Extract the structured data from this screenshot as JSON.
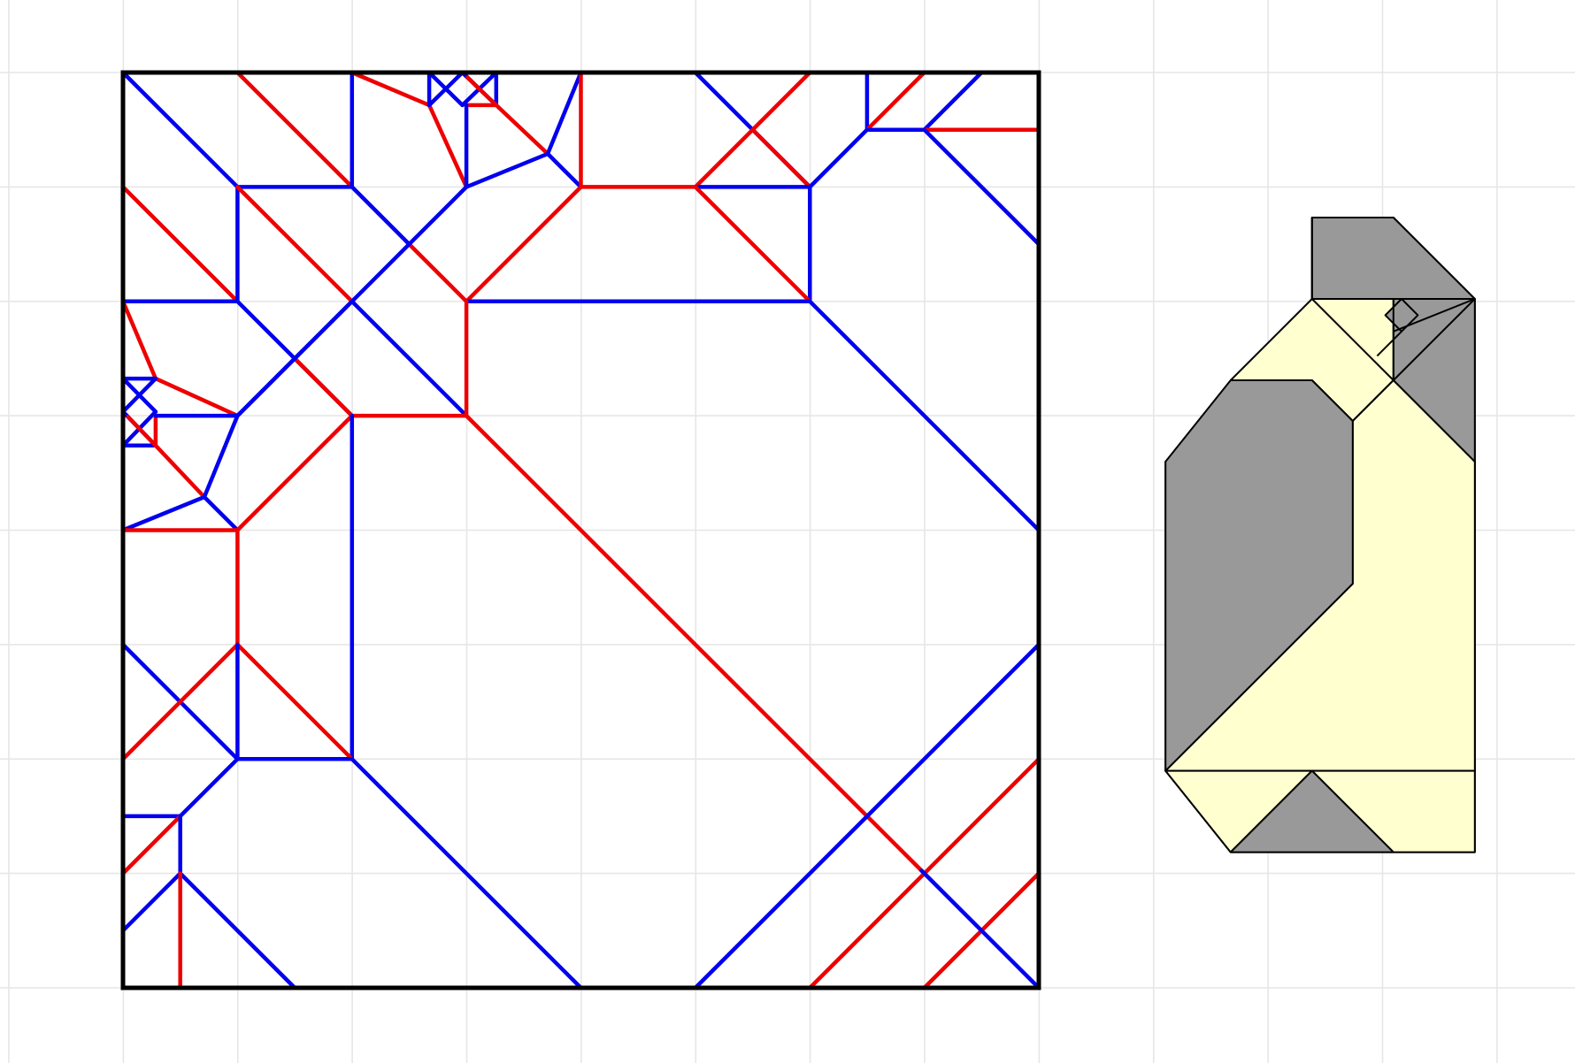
{
  "colors": {
    "background": "#ffffff",
    "grid": "#e6e6e6",
    "border": "#000000",
    "mountain": "#ee0000",
    "valley": "#0000ee",
    "paper_front": "#ffffd0",
    "paper_back": "#999999",
    "edge": "#000000"
  },
  "crease_pattern": {
    "creases": [
      {
        "t": "v",
        "p": [
          0,
          0,
          4,
          4
        ]
      },
      {
        "t": "m",
        "p": [
          4,
          0,
          8,
          4
        ]
      },
      {
        "t": "v",
        "p": [
          8,
          0,
          8,
          4
        ]
      },
      {
        "t": "m",
        "p": [
          8,
          0,
          10.7,
          1.14
        ]
      },
      {
        "t": "m",
        "p": [
          10.7,
          1.14,
          12,
          4
        ]
      },
      {
        "t": "v",
        "p": [
          10.7,
          0,
          10.7,
          1.14
        ]
      },
      {
        "t": "v",
        "p": [
          10.7,
          0,
          11.86,
          1.14
        ]
      },
      {
        "t": "v",
        "p": [
          11.86,
          0,
          12.04,
          0.18
        ]
      },
      {
        "t": "v",
        "p": [
          11.86,
          0,
          10.7,
          1.14
        ]
      },
      {
        "t": "v",
        "p": [
          11.86,
          0,
          13.04,
          1.14
        ]
      },
      {
        "t": "v",
        "p": [
          13.04,
          0,
          13.04,
          1.14
        ]
      },
      {
        "t": "v",
        "p": [
          13.04,
          0,
          11.86,
          1.14
        ]
      },
      {
        "t": "m",
        "p": [
          12,
          1.14,
          13.04,
          1.14
        ]
      },
      {
        "t": "m",
        "p": [
          12.04,
          0.18,
          13.04,
          1.14
        ]
      },
      {
        "t": "v",
        "p": [
          12,
          1.14,
          12,
          4
        ]
      },
      {
        "t": "m",
        "p": [
          13.04,
          1.14,
          14.84,
          2.84
        ]
      },
      {
        "t": "v",
        "p": [
          16,
          0,
          14.84,
          2.84
        ]
      },
      {
        "t": "v",
        "p": [
          12,
          4,
          14.84,
          2.84
        ]
      },
      {
        "t": "v",
        "p": [
          14.84,
          2.84,
          16,
          4
        ]
      },
      {
        "t": "m",
        "p": [
          16,
          0,
          16,
          4
        ]
      },
      {
        "t": "v",
        "p": [
          20,
          0,
          24,
          4
        ]
      },
      {
        "t": "m",
        "p": [
          24,
          0,
          20,
          4
        ]
      },
      {
        "t": "m",
        "p": [
          22,
          2,
          24,
          4
        ]
      },
      {
        "t": "v",
        "p": [
          26,
          0,
          26,
          2
        ]
      },
      {
        "t": "m",
        "p": [
          26,
          2,
          28,
          0
        ]
      },
      {
        "t": "v",
        "p": [
          28,
          2,
          30,
          0
        ]
      },
      {
        "t": "v",
        "p": [
          24,
          4,
          26,
          2
        ]
      },
      {
        "t": "v",
        "p": [
          26,
          2,
          28,
          2
        ]
      },
      {
        "t": "m",
        "p": [
          28,
          2,
          32,
          2
        ]
      },
      {
        "t": "v",
        "p": [
          28,
          2,
          32,
          6
        ]
      },
      {
        "t": "v",
        "p": [
          4,
          4,
          8,
          4
        ]
      },
      {
        "t": "m",
        "p": [
          16,
          4,
          20,
          4
        ]
      },
      {
        "t": "v",
        "p": [
          20,
          4,
          24,
          4
        ]
      },
      {
        "t": "v",
        "p": [
          24,
          4,
          24,
          8
        ]
      },
      {
        "t": "m",
        "p": [
          20,
          4,
          24,
          8
        ]
      },
      {
        "t": "m",
        "p": [
          0,
          4,
          4,
          8
        ]
      },
      {
        "t": "v",
        "p": [
          4,
          4,
          4,
          8
        ]
      },
      {
        "t": "m",
        "p": [
          4,
          4,
          8,
          8
        ]
      },
      {
        "t": "v",
        "p": [
          8,
          4,
          10,
          6
        ]
      },
      {
        "t": "m",
        "p": [
          10,
          6,
          12,
          8
        ]
      },
      {
        "t": "v",
        "p": [
          12,
          4,
          8,
          8
        ]
      },
      {
        "t": "m",
        "p": [
          16,
          4,
          12,
          8
        ]
      },
      {
        "t": "v",
        "p": [
          12,
          8,
          24,
          8
        ]
      },
      {
        "t": "v",
        "p": [
          24,
          8,
          32,
          16
        ]
      },
      {
        "t": "v",
        "p": [
          0,
          8,
          4,
          8
        ]
      },
      {
        "t": "v",
        "p": [
          4,
          8,
          8,
          12
        ]
      },
      {
        "t": "v",
        "p": [
          8,
          8,
          12,
          12
        ]
      },
      {
        "t": "v",
        "p": [
          8,
          8,
          6,
          10
        ]
      },
      {
        "t": "v",
        "p": [
          6,
          10,
          4,
          12
        ]
      },
      {
        "t": "m",
        "p": [
          6,
          10,
          8,
          12
        ]
      },
      {
        "t": "m",
        "p": [
          12,
          8,
          12,
          12
        ]
      },
      {
        "t": "m",
        "p": [
          8,
          12,
          12,
          12
        ]
      },
      {
        "t": "m",
        "p": [
          0,
          8,
          1.14,
          10.7
        ]
      },
      {
        "t": "m",
        "p": [
          1.14,
          10.7,
          4,
          12
        ]
      },
      {
        "t": "v",
        "p": [
          0,
          10.7,
          1.14,
          10.7
        ]
      },
      {
        "t": "v",
        "p": [
          0,
          10.7,
          1.14,
          11.86
        ]
      },
      {
        "t": "v",
        "p": [
          0,
          11.86,
          0.18,
          12.04
        ]
      },
      {
        "t": "v",
        "p": [
          0,
          11.86,
          1.14,
          10.7
        ]
      },
      {
        "t": "v",
        "p": [
          0,
          11.86,
          1.14,
          13.04
        ]
      },
      {
        "t": "v",
        "p": [
          0,
          13.04,
          1.14,
          13.04
        ]
      },
      {
        "t": "v",
        "p": [
          0,
          13.04,
          1.14,
          11.86
        ]
      },
      {
        "t": "m",
        "p": [
          1.14,
          12,
          1.14,
          13.04
        ]
      },
      {
        "t": "m",
        "p": [
          0.18,
          12.04,
          1.14,
          13.04
        ]
      },
      {
        "t": "v",
        "p": [
          1.14,
          12,
          4,
          12
        ]
      },
      {
        "t": "m",
        "p": [
          1.14,
          13.04,
          2.84,
          14.84
        ]
      },
      {
        "t": "v",
        "p": [
          0,
          16,
          2.84,
          14.84
        ]
      },
      {
        "t": "v",
        "p": [
          4,
          12,
          2.84,
          14.84
        ]
      },
      {
        "t": "v",
        "p": [
          2.84,
          14.84,
          4,
          16
        ]
      },
      {
        "t": "m",
        "p": [
          0,
          16,
          4,
          16
        ]
      },
      {
        "t": "v",
        "p": [
          4,
          12,
          8,
          8
        ]
      },
      {
        "t": "m",
        "p": [
          4,
          16,
          8,
          12
        ]
      },
      {
        "t": "m",
        "p": [
          12,
          12,
          27.9,
          27.9
        ]
      },
      {
        "t": "v",
        "p": [
          8,
          12,
          8,
          24
        ]
      },
      {
        "t": "m",
        "p": [
          4,
          16,
          4,
          20
        ]
      },
      {
        "t": "v",
        "p": [
          0,
          20,
          4,
          24
        ]
      },
      {
        "t": "m",
        "p": [
          0,
          24,
          4,
          20
        ]
      },
      {
        "t": "m",
        "p": [
          4,
          20,
          8,
          24
        ]
      },
      {
        "t": "v",
        "p": [
          4,
          20,
          4,
          24
        ]
      },
      {
        "t": "v",
        "p": [
          4,
          24,
          8,
          24
        ]
      },
      {
        "t": "v",
        "p": [
          8,
          24,
          16,
          32
        ]
      },
      {
        "t": "v",
        "p": [
          4,
          24,
          2,
          26
        ]
      },
      {
        "t": "v",
        "p": [
          0,
          26,
          2,
          26
        ]
      },
      {
        "t": "m",
        "p": [
          0,
          28,
          2,
          26
        ]
      },
      {
        "t": "v",
        "p": [
          2,
          26,
          2,
          28
        ]
      },
      {
        "t": "v",
        "p": [
          0,
          30,
          2,
          28
        ]
      },
      {
        "t": "v",
        "p": [
          2,
          28,
          6,
          32
        ]
      },
      {
        "t": "m",
        "p": [
          2,
          28,
          2,
          32
        ]
      },
      {
        "t": "v",
        "p": [
          32,
          20,
          20,
          32
        ]
      },
      {
        "t": "m",
        "p": [
          32,
          24,
          24,
          32
        ]
      },
      {
        "t": "m",
        "p": [
          32,
          28,
          28,
          32
        ]
      },
      {
        "t": "v",
        "p": [
          27.9,
          27.9,
          32,
          32
        ]
      }
    ]
  },
  "folded_model": {
    "back_regions": [
      [
        [
          7,
          0
        ],
        [
          12,
          0
        ],
        [
          17,
          5
        ],
        [
          7,
          5
        ]
      ],
      [
        [
          12,
          5
        ],
        [
          17,
          5
        ],
        [
          17,
          15
        ],
        [
          12,
          10
        ]
      ],
      [
        [
          2,
          10
        ],
        [
          7,
          10
        ],
        [
          9.5,
          12.5
        ],
        [
          9.5,
          22.5
        ],
        [
          -2,
          34
        ],
        [
          -2,
          15
        ]
      ],
      [
        [
          7,
          34
        ],
        [
          12,
          39
        ],
        [
          2,
          39
        ]
      ],
      [
        [
          11.5,
          6
        ],
        [
          12.5,
          5
        ],
        [
          13.5,
          6
        ],
        [
          12.5,
          7
        ]
      ]
    ],
    "front_regions": [
      [
        [
          7,
          5
        ],
        [
          17,
          5
        ],
        [
          12,
          10
        ],
        [
          9.5,
          12.5
        ],
        [
          7,
          10
        ],
        [
          2,
          10
        ]
      ],
      [
        [
          17,
          15
        ],
        [
          17,
          34
        ],
        [
          7,
          34
        ],
        [
          -2,
          34
        ]
      ],
      [
        [
          9.5,
          12.5
        ],
        [
          12,
          10
        ],
        [
          17,
          15
        ],
        [
          17,
          34
        ],
        [
          7,
          34
        ],
        [
          -2,
          34
        ],
        [
          9.5,
          22.5
        ]
      ],
      [
        [
          -2,
          34
        ],
        [
          7,
          34
        ],
        [
          2,
          39
        ]
      ],
      [
        [
          7,
          34
        ],
        [
          17,
          34
        ],
        [
          17,
          39
        ],
        [
          12,
          39
        ]
      ]
    ],
    "lines": [
      [
        7,
        0,
        7,
        5
      ],
      [
        7,
        5,
        17,
        5
      ],
      [
        7,
        5,
        12,
        10
      ],
      [
        12,
        5,
        12,
        10
      ],
      [
        17,
        5,
        12,
        10
      ],
      [
        12,
        7,
        17,
        5
      ],
      [
        11,
        8.5,
        12.5,
        7
      ]
    ],
    "outline": [
      [
        7,
        0
      ],
      [
        12,
        0
      ],
      [
        17,
        5
      ],
      [
        17,
        39
      ],
      [
        2,
        39
      ],
      [
        -2,
        34
      ],
      [
        -2,
        15
      ],
      [
        7,
        5
      ]
    ]
  }
}
